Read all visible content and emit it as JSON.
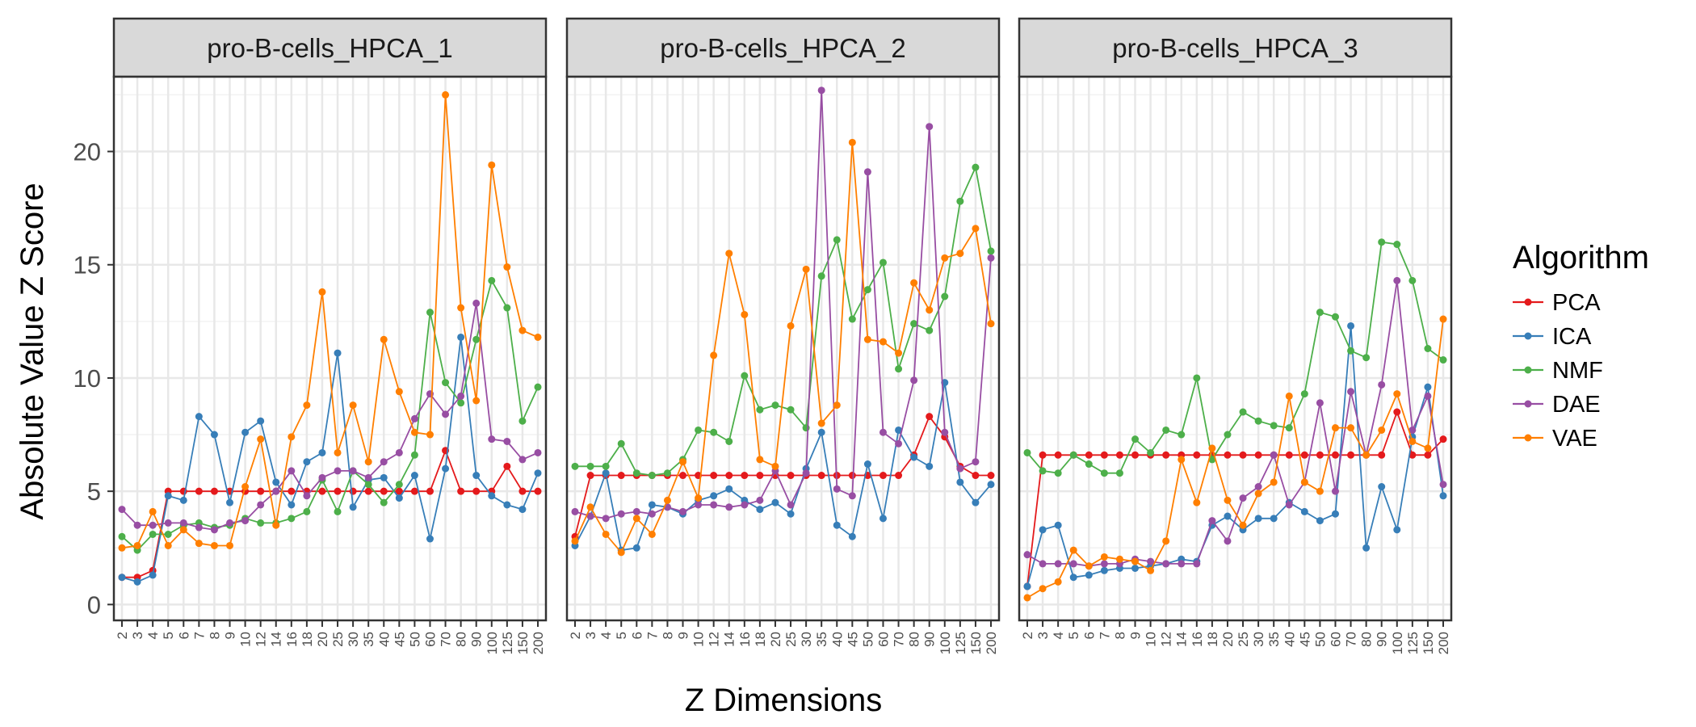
{
  "chart_data": {
    "type": "line",
    "facets": [
      "pro-B-cells_HPCA_1",
      "pro-B-cells_HPCA_2",
      "pro-B-cells_HPCA_3"
    ],
    "x_categories": [
      "2",
      "3",
      "4",
      "5",
      "6",
      "7",
      "8",
      "9",
      "10",
      "12",
      "14",
      "16",
      "18",
      "20",
      "25",
      "30",
      "35",
      "40",
      "45",
      "50",
      "60",
      "70",
      "80",
      "90",
      "100",
      "125",
      "150",
      "200"
    ],
    "xlabel": "Z Dimensions",
    "ylabel": "Absolute Value Z Score",
    "ylim": [
      -0.7,
      23.3
    ],
    "yticks": [
      0,
      5,
      10,
      15,
      20
    ],
    "legend": {
      "title": "Algorithm",
      "placement": "right",
      "entries": [
        "PCA",
        "ICA",
        "NMF",
        "DAE",
        "VAE"
      ]
    },
    "colors": {
      "PCA": "#e41a1c",
      "ICA": "#377eb8",
      "NMF": "#4daf4a",
      "DAE": "#984ea3",
      "VAE": "#ff7f00"
    },
    "panels": [
      {
        "facet": "pro-B-cells_HPCA_1",
        "series": [
          {
            "name": "PCA",
            "values": [
              1.2,
              1.2,
              1.5,
              5.0,
              5.0,
              5.0,
              5.0,
              5.0,
              5.0,
              5.0,
              5.0,
              5.0,
              5.0,
              5.0,
              5.0,
              5.0,
              5.0,
              5.0,
              5.0,
              5.0,
              5.0,
              6.8,
              5.0,
              5.0,
              5.0,
              6.1,
              5.0,
              5.0
            ]
          },
          {
            "name": "ICA",
            "values": [
              1.2,
              1.0,
              1.3,
              4.8,
              4.6,
              8.3,
              7.5,
              4.5,
              7.6,
              8.1,
              5.4,
              4.4,
              6.3,
              6.7,
              11.1,
              4.3,
              5.5,
              5.6,
              4.7,
              5.7,
              2.9,
              6.0,
              11.8,
              5.7,
              4.8,
              4.4,
              4.2,
              5.8
            ]
          },
          {
            "name": "NMF",
            "values": [
              3.0,
              2.4,
              3.1,
              3.1,
              3.5,
              3.6,
              3.4,
              3.5,
              3.8,
              3.6,
              3.6,
              3.8,
              4.1,
              5.5,
              4.1,
              5.9,
              5.3,
              4.5,
              5.3,
              6.6,
              12.9,
              9.8,
              8.9,
              11.7,
              14.3,
              13.1,
              8.1,
              9.6
            ]
          },
          {
            "name": "DAE",
            "values": [
              4.2,
              3.5,
              3.5,
              3.6,
              3.6,
              3.4,
              3.3,
              3.6,
              3.7,
              4.4,
              5.0,
              5.9,
              4.8,
              5.6,
              5.9,
              5.9,
              5.6,
              6.3,
              6.7,
              8.2,
              9.3,
              8.4,
              9.2,
              13.3,
              7.3,
              7.2,
              6.4,
              6.7
            ]
          },
          {
            "name": "VAE",
            "values": [
              2.5,
              2.6,
              4.1,
              2.6,
              3.3,
              2.7,
              2.6,
              2.6,
              5.2,
              7.3,
              3.5,
              7.4,
              8.8,
              13.8,
              6.7,
              8.8,
              6.3,
              11.7,
              9.4,
              7.6,
              7.5,
              22.5,
              13.1,
              9.0,
              19.4,
              14.9,
              12.1,
              11.8
            ]
          }
        ]
      },
      {
        "facet": "pro-B-cells_HPCA_2",
        "series": [
          {
            "name": "PCA",
            "values": [
              3.0,
              5.7,
              5.7,
              5.7,
              5.7,
              5.7,
              5.7,
              5.7,
              5.7,
              5.7,
              5.7,
              5.7,
              5.7,
              5.7,
              5.7,
              5.7,
              5.7,
              5.7,
              5.7,
              5.7,
              5.7,
              5.7,
              6.6,
              8.3,
              7.4,
              6.1,
              5.7,
              5.7
            ]
          },
          {
            "name": "ICA",
            "values": [
              2.6,
              3.9,
              5.8,
              2.4,
              2.5,
              4.4,
              4.3,
              4.0,
              4.6,
              4.8,
              5.1,
              4.6,
              4.2,
              4.5,
              4.0,
              6.0,
              7.6,
              3.5,
              3.0,
              6.2,
              3.8,
              7.7,
              6.5,
              6.1,
              9.8,
              5.4,
              4.5,
              5.3
            ]
          },
          {
            "name": "NMF",
            "values": [
              6.1,
              6.1,
              6.1,
              7.1,
              5.8,
              5.7,
              5.8,
              6.4,
              7.7,
              7.6,
              7.2,
              10.1,
              8.6,
              8.8,
              8.6,
              7.8,
              14.5,
              16.1,
              12.6,
              13.9,
              15.1,
              10.4,
              12.4,
              12.1,
              13.6,
              17.8,
              19.3,
              15.6
            ]
          },
          {
            "name": "DAE",
            "values": [
              4.1,
              3.9,
              3.8,
              4.0,
              4.1,
              4.0,
              4.3,
              4.1,
              4.4,
              4.4,
              4.3,
              4.4,
              4.6,
              5.9,
              4.4,
              5.8,
              22.7,
              5.1,
              4.8,
              19.1,
              7.6,
              7.1,
              9.9,
              21.1,
              7.6,
              6.0,
              6.3,
              15.3
            ]
          },
          {
            "name": "VAE",
            "values": [
              2.8,
              4.3,
              3.1,
              2.3,
              3.8,
              3.1,
              4.6,
              6.3,
              4.7,
              11.0,
              15.5,
              12.8,
              6.4,
              6.1,
              12.3,
              14.8,
              8.0,
              8.8,
              20.4,
              11.7,
              11.6,
              11.1,
              14.2,
              13.0,
              15.3,
              15.5,
              16.6,
              12.4
            ]
          }
        ]
      },
      {
        "facet": "pro-B-cells_HPCA_3",
        "series": [
          {
            "name": "PCA",
            "values": [
              0.8,
              6.6,
              6.6,
              6.6,
              6.6,
              6.6,
              6.6,
              6.6,
              6.6,
              6.6,
              6.6,
              6.6,
              6.6,
              6.6,
              6.6,
              6.6,
              6.6,
              6.6,
              6.6,
              6.6,
              6.6,
              6.6,
              6.6,
              6.6,
              8.5,
              6.6,
              6.6,
              7.3
            ]
          },
          {
            "name": "ICA",
            "values": [
              0.8,
              3.3,
              3.5,
              1.2,
              1.3,
              1.5,
              1.6,
              1.6,
              1.7,
              1.8,
              2.0,
              1.9,
              3.5,
              3.9,
              3.3,
              3.8,
              3.8,
              4.5,
              4.1,
              3.7,
              4.0,
              12.3,
              2.5,
              5.2,
              3.3,
              7.4,
              9.6,
              4.8
            ]
          },
          {
            "name": "NMF",
            "values": [
              6.7,
              5.9,
              5.8,
              6.6,
              6.2,
              5.8,
              5.8,
              7.3,
              6.7,
              7.7,
              7.5,
              10.0,
              6.4,
              7.5,
              8.5,
              8.1,
              7.9,
              7.8,
              9.3,
              12.9,
              12.7,
              11.2,
              10.9,
              16.0,
              15.9,
              14.3,
              11.3,
              10.8
            ]
          },
          {
            "name": "DAE",
            "values": [
              2.2,
              1.8,
              1.8,
              1.8,
              1.7,
              1.8,
              1.8,
              2.0,
              1.9,
              1.8,
              1.8,
              1.8,
              3.7,
              2.8,
              4.7,
              5.2,
              6.6,
              4.4,
              5.4,
              8.9,
              5.0,
              9.4,
              6.6,
              9.7,
              14.3,
              7.7,
              9.2,
              5.3
            ]
          },
          {
            "name": "VAE",
            "values": [
              0.3,
              0.7,
              1.0,
              2.4,
              1.7,
              2.1,
              2.0,
              1.9,
              1.5,
              2.8,
              6.4,
              4.5,
              6.9,
              4.6,
              3.5,
              4.9,
              5.4,
              9.2,
              5.4,
              5.0,
              7.8,
              7.8,
              6.6,
              7.7,
              9.3,
              7.2,
              6.9,
              12.6
            ]
          }
        ]
      }
    ]
  }
}
